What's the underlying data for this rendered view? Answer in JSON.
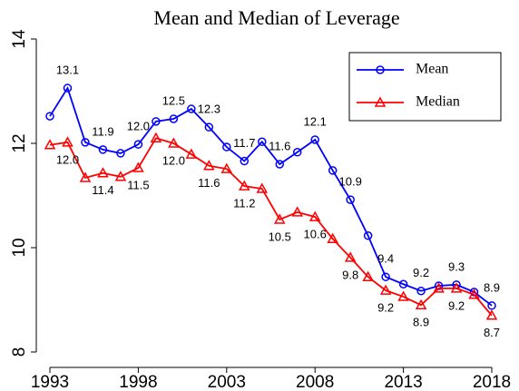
{
  "chart_data": {
    "type": "line",
    "title": "Mean and Median of Leverage",
    "x": [
      1993,
      1994,
      1995,
      1996,
      1997,
      1998,
      1999,
      2000,
      2001,
      2002,
      2003,
      2004,
      2005,
      2006,
      2007,
      2008,
      2009,
      2010,
      2011,
      2012,
      2013,
      2014,
      2015,
      2016,
      2017,
      2018
    ],
    "xlim": [
      1993,
      2018
    ],
    "xticks": [
      1993,
      1998,
      2003,
      2008,
      2013,
      2018
    ],
    "ylim": [
      8,
      14
    ],
    "yticks": [
      8,
      10,
      12,
      14
    ],
    "legend": "top-right",
    "series": [
      {
        "name": "Mean",
        "color": "#0000ff",
        "marker": "circle",
        "values": [
          12.52,
          13.06,
          12.02,
          11.88,
          11.81,
          11.98,
          12.42,
          12.47,
          12.66,
          12.31,
          11.93,
          11.66,
          12.03,
          11.6,
          11.83,
          12.07,
          11.48,
          10.92,
          10.23,
          9.44,
          9.3,
          9.17,
          9.27,
          9.29,
          9.15,
          8.89
        ],
        "value_labels": [
          null,
          "13.1",
          null,
          "11.9",
          null,
          "12.0",
          null,
          "12.5",
          null,
          "12.3",
          null,
          "11.7",
          null,
          "11.6",
          null,
          "12.1",
          null,
          "10.9",
          null,
          "9.4",
          null,
          "9.2",
          null,
          "9.3",
          null,
          "8.9"
        ]
      },
      {
        "name": "Median",
        "color": "#ff0000",
        "marker": "triangle",
        "values": [
          11.97,
          12.02,
          11.34,
          11.43,
          11.36,
          11.53,
          12.1,
          12.0,
          11.79,
          11.57,
          11.51,
          11.18,
          11.13,
          10.54,
          10.68,
          10.59,
          10.17,
          9.81,
          9.44,
          9.18,
          9.06,
          8.9,
          9.22,
          9.22,
          9.1,
          8.7
        ],
        "value_labels": [
          null,
          "12.0",
          null,
          "11.4",
          null,
          "11.5",
          null,
          "12.0",
          null,
          "11.6",
          null,
          "11.2",
          null,
          "10.5",
          null,
          "10.6",
          null,
          "9.8",
          null,
          "9.2",
          null,
          "8.9",
          null,
          "9.2",
          null,
          "8.7"
        ]
      }
    ]
  }
}
